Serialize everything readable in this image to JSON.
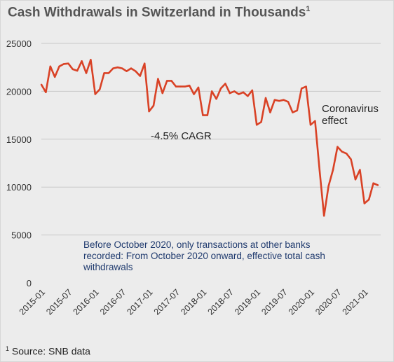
{
  "title": "Cash Withdrawals in Switzerland in Thousands",
  "title_footnote_mark": "1",
  "source_mark": "1",
  "source": "Source: SNB data",
  "colors": {
    "line": "#d94226",
    "note": "#1f3a6e",
    "grid": "#c8c8c8",
    "text": "#333333"
  },
  "chart_data": {
    "type": "line",
    "title": "Cash Withdrawals in Switzerland in Thousands",
    "xlabel": "",
    "ylabel": "",
    "ylim": [
      0,
      25000
    ],
    "yticks": [
      0,
      5000,
      10000,
      15000,
      20000,
      25000
    ],
    "xticks": [
      "2015-01",
      "2015-07",
      "2016-01",
      "2016-07",
      "2017-01",
      "2017-07",
      "2018-01",
      "2018-07",
      "2019-01",
      "2019-07",
      "2020-01",
      "2020-07",
      "2021-01"
    ],
    "grid": true,
    "legend": "none",
    "series": [
      {
        "values": [
          {
            "x": "2015-01",
            "y": 20700
          },
          {
            "x": "2015-02",
            "y": 19900
          },
          {
            "x": "2015-03",
            "y": 22600
          },
          {
            "x": "2015-04",
            "y": 21500
          },
          {
            "x": "2015-05",
            "y": 22600
          },
          {
            "x": "2015-06",
            "y": 22850
          },
          {
            "x": "2015-07",
            "y": 22900
          },
          {
            "x": "2015-08",
            "y": 22300
          },
          {
            "x": "2015-09",
            "y": 22150
          },
          {
            "x": "2015-10",
            "y": 23150
          },
          {
            "x": "2015-11",
            "y": 21900
          },
          {
            "x": "2015-12",
            "y": 23300
          },
          {
            "x": "2016-01",
            "y": 19700
          },
          {
            "x": "2016-02",
            "y": 20200
          },
          {
            "x": "2016-03",
            "y": 21900
          },
          {
            "x": "2016-04",
            "y": 21900
          },
          {
            "x": "2016-05",
            "y": 22400
          },
          {
            "x": "2016-06",
            "y": 22500
          },
          {
            "x": "2016-07",
            "y": 22400
          },
          {
            "x": "2016-08",
            "y": 22100
          },
          {
            "x": "2016-09",
            "y": 22400
          },
          {
            "x": "2016-10",
            "y": 22100
          },
          {
            "x": "2016-11",
            "y": 21600
          },
          {
            "x": "2016-12",
            "y": 22900
          },
          {
            "x": "2017-01",
            "y": 17900
          },
          {
            "x": "2017-02",
            "y": 18500
          },
          {
            "x": "2017-03",
            "y": 21300
          },
          {
            "x": "2017-04",
            "y": 19800
          },
          {
            "x": "2017-05",
            "y": 21100
          },
          {
            "x": "2017-06",
            "y": 21100
          },
          {
            "x": "2017-07",
            "y": 20500
          },
          {
            "x": "2017-08",
            "y": 20500
          },
          {
            "x": "2017-09",
            "y": 20500
          },
          {
            "x": "2017-10",
            "y": 20600
          },
          {
            "x": "2017-11",
            "y": 19700
          },
          {
            "x": "2017-12",
            "y": 20400
          },
          {
            "x": "2018-01",
            "y": 17500
          },
          {
            "x": "2018-02",
            "y": 17500
          },
          {
            "x": "2018-03",
            "y": 20000
          },
          {
            "x": "2018-04",
            "y": 19200
          },
          {
            "x": "2018-05",
            "y": 20300
          },
          {
            "x": "2018-06",
            "y": 20800
          },
          {
            "x": "2018-07",
            "y": 19800
          },
          {
            "x": "2018-08",
            "y": 20000
          },
          {
            "x": "2018-09",
            "y": 19700
          },
          {
            "x": "2018-10",
            "y": 19900
          },
          {
            "x": "2018-11",
            "y": 19500
          },
          {
            "x": "2018-12",
            "y": 20100
          },
          {
            "x": "2019-01",
            "y": 16500
          },
          {
            "x": "2019-02",
            "y": 16800
          },
          {
            "x": "2019-03",
            "y": 19300
          },
          {
            "x": "2019-04",
            "y": 17800
          },
          {
            "x": "2019-05",
            "y": 19100
          },
          {
            "x": "2019-06",
            "y": 19000
          },
          {
            "x": "2019-07",
            "y": 19100
          },
          {
            "x": "2019-08",
            "y": 18900
          },
          {
            "x": "2019-09",
            "y": 17800
          },
          {
            "x": "2019-10",
            "y": 18000
          },
          {
            "x": "2019-11",
            "y": 20300
          },
          {
            "x": "2019-12",
            "y": 20500
          },
          {
            "x": "2020-01",
            "y": 16500
          },
          {
            "x": "2020-02",
            "y": 16900
          },
          {
            "x": "2020-03",
            "y": 11800
          },
          {
            "x": "2020-04",
            "y": 7000
          },
          {
            "x": "2020-05",
            "y": 10100
          },
          {
            "x": "2020-06",
            "y": 11800
          },
          {
            "x": "2020-07",
            "y": 14200
          },
          {
            "x": "2020-08",
            "y": 13700
          },
          {
            "x": "2020-09",
            "y": 13500
          },
          {
            "x": "2020-10",
            "y": 12900
          },
          {
            "x": "2020-11",
            "y": 10800
          },
          {
            "x": "2020-12",
            "y": 11800
          },
          {
            "x": "2021-01",
            "y": 8300
          },
          {
            "x": "2021-02",
            "y": 8700
          },
          {
            "x": "2021-03",
            "y": 10400
          },
          {
            "x": "2021-04",
            "y": 10200
          }
        ]
      }
    ],
    "annotations": {
      "cagr": "-4.5% CAGR",
      "corona_line1": "Coronavirus",
      "corona_line2": "effect",
      "note_line1": "Before October 2020, only transactions at other banks",
      "note_line2": "recorded: From October 2020 onward, effective total cash",
      "note_line3": "withdrawals"
    }
  }
}
